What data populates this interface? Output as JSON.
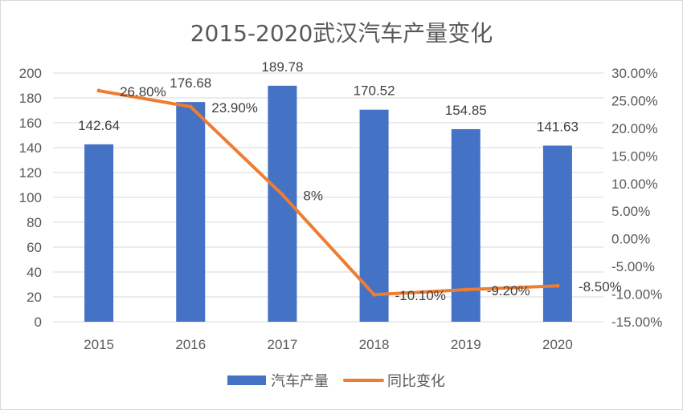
{
  "chart_data": {
    "type": "bar",
    "title": "2015-2020武汉汽车产量变化",
    "categories": [
      "2015",
      "2016",
      "2017",
      "2018",
      "2019",
      "2020"
    ],
    "series": [
      {
        "name": "汽车产量",
        "type": "bar",
        "axis": "left",
        "color": "#4472c4",
        "values": [
          142.64,
          176.68,
          189.78,
          170.52,
          154.85,
          141.63
        ],
        "labels": [
          "142.64",
          "176.68",
          "189.78",
          "170.52",
          "154.85",
          "141.63"
        ]
      },
      {
        "name": "同比变化",
        "type": "line",
        "axis": "right",
        "color": "#ed7d31",
        "values": [
          26.8,
          23.9,
          8,
          -10.1,
          -9.2,
          -8.5
        ],
        "labels": [
          "26.80%",
          "23.90%",
          "8%",
          "-10.10%",
          "-9.20%",
          "-8.50%"
        ]
      }
    ],
    "y_left": {
      "ylim": [
        0,
        200
      ],
      "ticks": [
        0,
        20,
        40,
        60,
        80,
        100,
        120,
        140,
        160,
        180,
        200
      ],
      "tick_labels": [
        "0",
        "20",
        "40",
        "60",
        "80",
        "100",
        "120",
        "140",
        "160",
        "180",
        "200"
      ]
    },
    "y_right": {
      "ylim": [
        -15,
        30
      ],
      "ticks": [
        -15,
        -10,
        -5,
        0,
        5,
        10,
        15,
        20,
        25,
        30
      ],
      "tick_labels": [
        "-15.00%",
        "-10.00%",
        "-5.00%",
        "0.00%",
        "5.00%",
        "10.00%",
        "15.00%",
        "20.00%",
        "25.00%",
        "30.00%"
      ]
    },
    "grid": true,
    "legend": "bottom"
  }
}
